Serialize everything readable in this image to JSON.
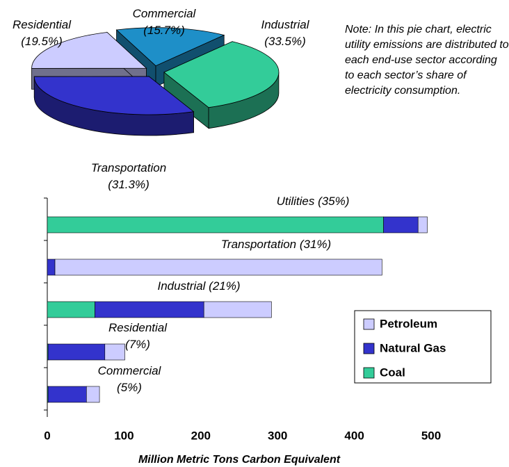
{
  "chart_data": [
    {
      "type": "pie",
      "categories": [
        "Residential",
        "Commercial",
        "Industrial",
        "Transportation"
      ],
      "values": [
        19.5,
        15.7,
        33.5,
        31.3
      ],
      "value_labels": [
        "(19.5%)",
        "(15.7%)",
        "(33.5%)",
        "(31.3%)"
      ],
      "colors": [
        "#ccccff",
        "#1e8fc8",
        "#33cc99",
        "#3333cc"
      ],
      "annotation": "Note: In this pie chart, electric utility emissions are distributed to each end-use sector according to each sector’s share of electricity consumption."
    },
    {
      "type": "bar",
      "orientation": "horizontal",
      "stacked": true,
      "categories": [
        "Utilities (35%)",
        "Transportation (31%)",
        "Industrial (21%)",
        "Residential (7%)",
        "Commercial (5%)"
      ],
      "series": [
        {
          "name": "Coal",
          "color": "#33cc99",
          "values": [
            438,
            0,
            62,
            1,
            1
          ]
        },
        {
          "name": "Natural Gas",
          "color": "#3333cc",
          "values": [
            45,
            10,
            142,
            74,
            50
          ]
        },
        {
          "name": "Petroleum",
          "color": "#ccccff",
          "values": [
            12,
            426,
            88,
            26,
            17
          ]
        }
      ],
      "xlabel": "Million Metric Tons Carbon Equivalent",
      "xlim": [
        0,
        500
      ],
      "xticks": [
        0,
        100,
        200,
        300,
        400,
        500
      ],
      "legend": "lower right"
    }
  ]
}
